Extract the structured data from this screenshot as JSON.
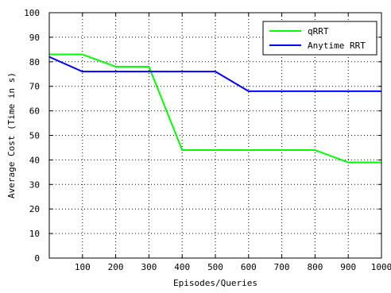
{
  "chart_data": {
    "type": "line",
    "title": "",
    "xlabel": "Episodes/Queries",
    "ylabel": "Average Cost (Time in s)",
    "xlim": [
      0,
      1000
    ],
    "ylim": [
      0,
      100
    ],
    "xticks": [
      100,
      200,
      300,
      400,
      500,
      600,
      700,
      800,
      900,
      1000
    ],
    "yticks": [
      0,
      10,
      20,
      30,
      40,
      50,
      60,
      70,
      80,
      90,
      100
    ],
    "grid": true,
    "grid_style": "dotted",
    "legend_position": "top-right",
    "series": [
      {
        "name": "qRRT",
        "color": "#00ff00",
        "x": [
          0,
          100,
          200,
          300,
          400,
          500,
          600,
          700,
          800,
          900,
          1000
        ],
        "y": [
          83,
          83,
          78,
          78,
          44,
          44,
          44,
          44,
          44,
          39,
          39
        ]
      },
      {
        "name": "Anytime RRT",
        "color": "#0000ff",
        "x": [
          0,
          100,
          200,
          300,
          400,
          500,
          600,
          700,
          800,
          900,
          1000
        ],
        "y": [
          82,
          76,
          76,
          76,
          76,
          76,
          68,
          68,
          68,
          68,
          68
        ]
      }
    ]
  }
}
